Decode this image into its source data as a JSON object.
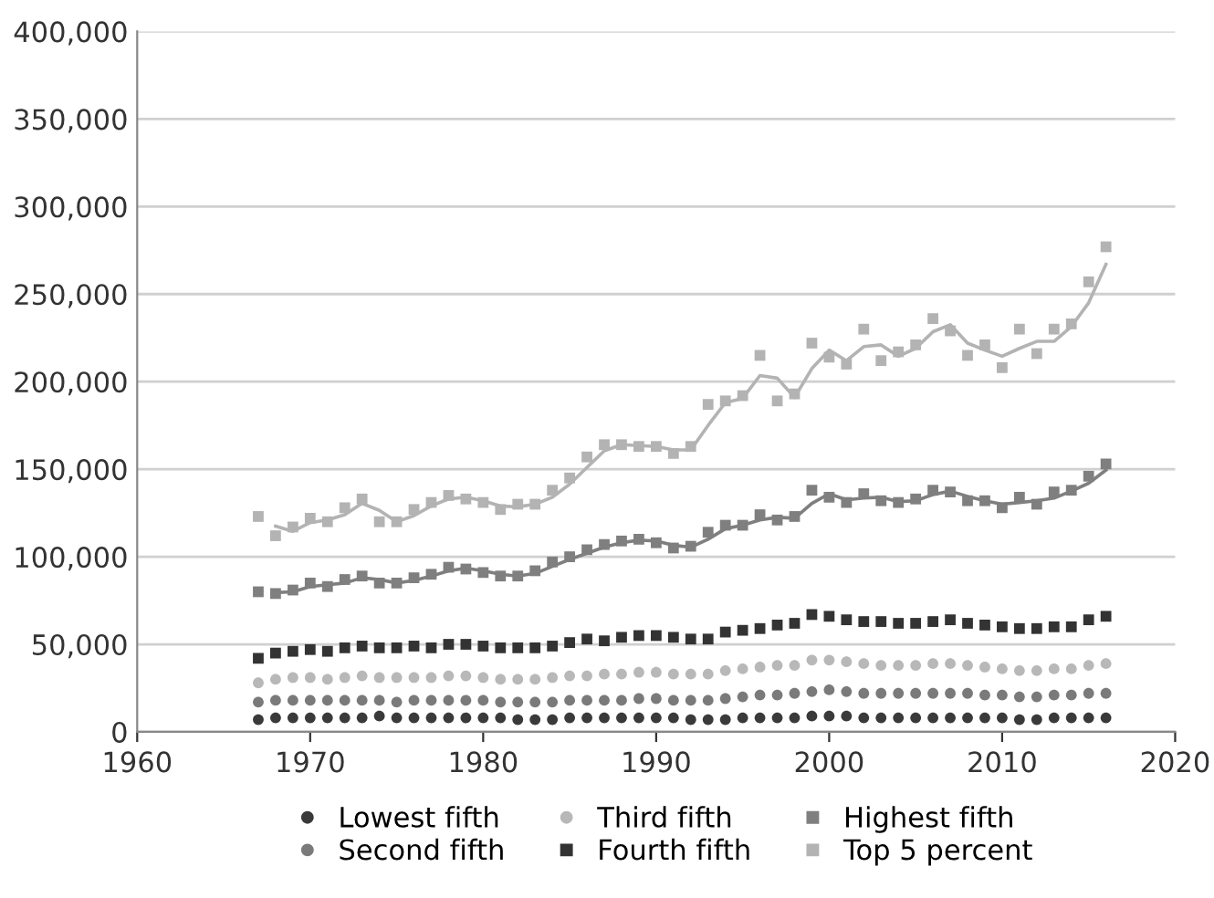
{
  "chart_data": {
    "type": "scatter",
    "xlim": [
      1960,
      2020
    ],
    "xticks": [
      1960,
      1970,
      1980,
      1990,
      2000,
      2010,
      2020
    ],
    "ylim": [
      0,
      400000
    ],
    "yticks": [
      {
        "value": 0,
        "label": "0"
      },
      {
        "value": 50000,
        "label": "50,000"
      },
      {
        "value": 100000,
        "label": "100,000"
      },
      {
        "value": 150000,
        "label": "150,000"
      },
      {
        "value": 200000,
        "label": "200,000"
      },
      {
        "value": 250000,
        "label": "250,000"
      },
      {
        "value": 300000,
        "label": "300,000"
      },
      {
        "value": 350000,
        "label": "350,000"
      },
      {
        "value": 400000,
        "label": "400,000"
      }
    ],
    "grid": "y",
    "legend": "bottom",
    "x": [
      1967,
      1968,
      1969,
      1970,
      1971,
      1972,
      1973,
      1974,
      1975,
      1976,
      1977,
      1978,
      1979,
      1980,
      1981,
      1982,
      1983,
      1984,
      1985,
      1986,
      1987,
      1988,
      1989,
      1990,
      1991,
      1992,
      1993,
      1994,
      1995,
      1996,
      1997,
      1998,
      1999,
      2000,
      2001,
      2002,
      2003,
      2004,
      2005,
      2006,
      2007,
      2008,
      2009,
      2010,
      2011,
      2012,
      2013,
      2014,
      2015,
      2016
    ],
    "series": [
      {
        "name": "Lowest fifth",
        "color": "#3a3a3a",
        "marker": "circle",
        "values": [
          7000,
          8000,
          8000,
          8000,
          8000,
          8000,
          8000,
          9000,
          8000,
          8000,
          8000,
          8000,
          8000,
          8000,
          8000,
          7000,
          7000,
          7000,
          8000,
          8000,
          8000,
          8000,
          8000,
          8000,
          8000,
          7000,
          7000,
          7000,
          8000,
          8000,
          8000,
          8000,
          9000,
          9000,
          9000,
          8000,
          8000,
          8000,
          8000,
          8000,
          8000,
          8000,
          8000,
          8000,
          7000,
          7000,
          8000,
          8000,
          8000,
          8000
        ]
      },
      {
        "name": "Second fifth",
        "color": "#7a7a7a",
        "marker": "circle",
        "values": [
          17000,
          18000,
          18000,
          18000,
          18000,
          18000,
          18000,
          18000,
          17000,
          18000,
          18000,
          18000,
          18000,
          18000,
          17000,
          17000,
          17000,
          17000,
          18000,
          18000,
          18000,
          18000,
          19000,
          19000,
          18000,
          18000,
          18000,
          19000,
          20000,
          21000,
          21000,
          22000,
          23000,
          24000,
          23000,
          22000,
          22000,
          22000,
          22000,
          22000,
          22000,
          22000,
          21000,
          21000,
          20000,
          20000,
          21000,
          21000,
          22000,
          22000
        ]
      },
      {
        "name": "Third fifth",
        "color": "#b8b8b8",
        "marker": "circle",
        "values": [
          28000,
          30000,
          31000,
          31000,
          30000,
          31000,
          32000,
          31000,
          31000,
          31000,
          31000,
          32000,
          32000,
          31000,
          30000,
          30000,
          30000,
          31000,
          32000,
          32000,
          33000,
          33000,
          34000,
          34000,
          33000,
          33000,
          33000,
          35000,
          36000,
          37000,
          38000,
          38000,
          41000,
          41000,
          40000,
          39000,
          38000,
          38000,
          38000,
          39000,
          39000,
          38000,
          37000,
          36000,
          35000,
          35000,
          36000,
          36000,
          38000,
          39000
        ]
      },
      {
        "name": "Fourth fifth",
        "color": "#333333",
        "marker": "square",
        "values": [
          42000,
          45000,
          46000,
          47000,
          46000,
          48000,
          49000,
          48000,
          48000,
          49000,
          48000,
          50000,
          50000,
          49000,
          48000,
          48000,
          48000,
          49000,
          51000,
          53000,
          52000,
          54000,
          55000,
          55000,
          54000,
          53000,
          53000,
          57000,
          58000,
          59000,
          61000,
          62000,
          67000,
          66000,
          64000,
          63000,
          63000,
          62000,
          62000,
          63000,
          64000,
          62000,
          61000,
          60000,
          59000,
          59000,
          60000,
          60000,
          64000,
          66000
        ]
      },
      {
        "name": "Highest fifth",
        "color": "#7f7f7f",
        "marker": "square",
        "values": [
          80000,
          79000,
          81000,
          85000,
          83000,
          87000,
          89000,
          85000,
          85000,
          88000,
          90000,
          94000,
          93000,
          91000,
          89000,
          89000,
          92000,
          97000,
          100000,
          104000,
          107000,
          109000,
          110000,
          108000,
          105000,
          106000,
          114000,
          118000,
          118000,
          124000,
          121000,
          123000,
          138000,
          134000,
          131000,
          136000,
          132000,
          131000,
          133000,
          138000,
          137000,
          132000,
          132000,
          128000,
          134000,
          130000,
          137000,
          138000,
          146000,
          153000
        ]
      },
      {
        "name": "Top 5 percent",
        "color": "#b3b3b3",
        "marker": "square",
        "values": [
          123000,
          112000,
          117000,
          122000,
          120000,
          128000,
          133000,
          120000,
          120000,
          127000,
          131000,
          135000,
          133000,
          131000,
          127000,
          130000,
          130000,
          138000,
          145000,
          157000,
          164000,
          164000,
          163000,
          163000,
          159000,
          163000,
          187000,
          189000,
          192000,
          215000,
          189000,
          193000,
          222000,
          214000,
          210000,
          230000,
          212000,
          217000,
          221000,
          236000,
          229000,
          215000,
          221000,
          208000,
          230000,
          216000,
          230000,
          233000,
          257000,
          277000
        ]
      },
      {
        "type": "line",
        "color": "#7f7f7f",
        "marker": "none",
        "x": [
          1968,
          1969,
          1970,
          1971,
          1972,
          1973,
          1974,
          1975,
          1976,
          1977,
          1978,
          1979,
          1980,
          1981,
          1982,
          1983,
          1984,
          1985,
          1986,
          1987,
          1988,
          1989,
          1990,
          1991,
          1992,
          1993,
          1994,
          1995,
          1996,
          1997,
          1998,
          1999,
          2000,
          2001,
          2002,
          2003,
          2004,
          2005,
          2006,
          2007,
          2008,
          2009,
          2010,
          2011,
          2012,
          2013,
          2014,
          2015,
          2016
        ],
        "values": [
          79500,
          80000,
          83000,
          84000,
          85000,
          88000,
          87000,
          85000,
          86500,
          89000,
          92000,
          93500,
          92000,
          90000,
          89000,
          90500,
          94500,
          98500,
          102000,
          105500,
          108000,
          109500,
          109000,
          106500,
          105500,
          110000,
          116000,
          118000,
          121000,
          122500,
          122000,
          130500,
          136000,
          132500,
          133500,
          134000,
          131500,
          132000,
          135500,
          137500,
          134500,
          132000,
          130000,
          131000,
          132000,
          133500,
          137500,
          142000,
          149500
        ]
      },
      {
        "type": "line",
        "color": "#b3b3b3",
        "marker": "none",
        "x": [
          1968,
          1969,
          1970,
          1971,
          1972,
          1973,
          1974,
          1975,
          1976,
          1977,
          1978,
          1979,
          1980,
          1981,
          1982,
          1983,
          1984,
          1985,
          1986,
          1987,
          1988,
          1989,
          1990,
          1991,
          1992,
          1993,
          1994,
          1995,
          1996,
          1997,
          1998,
          1999,
          2000,
          2001,
          2002,
          2003,
          2004,
          2005,
          2006,
          2007,
          2008,
          2009,
          2010,
          2011,
          2012,
          2013,
          2014,
          2015,
          2016
        ],
        "values": [
          117500,
          114500,
          119500,
          121000,
          124000,
          130500,
          126500,
          120000,
          123500,
          129000,
          133000,
          134000,
          132000,
          129000,
          128500,
          130000,
          134000,
          141500,
          151000,
          160500,
          164000,
          163500,
          163000,
          161000,
          161000,
          175000,
          188000,
          190500,
          203500,
          202000,
          191000,
          207500,
          218000,
          212000,
          220000,
          221000,
          214500,
          219000,
          228500,
          232500,
          222000,
          218000,
          214500,
          219000,
          223000,
          223000,
          231500,
          245000,
          267000
        ]
      }
    ]
  }
}
